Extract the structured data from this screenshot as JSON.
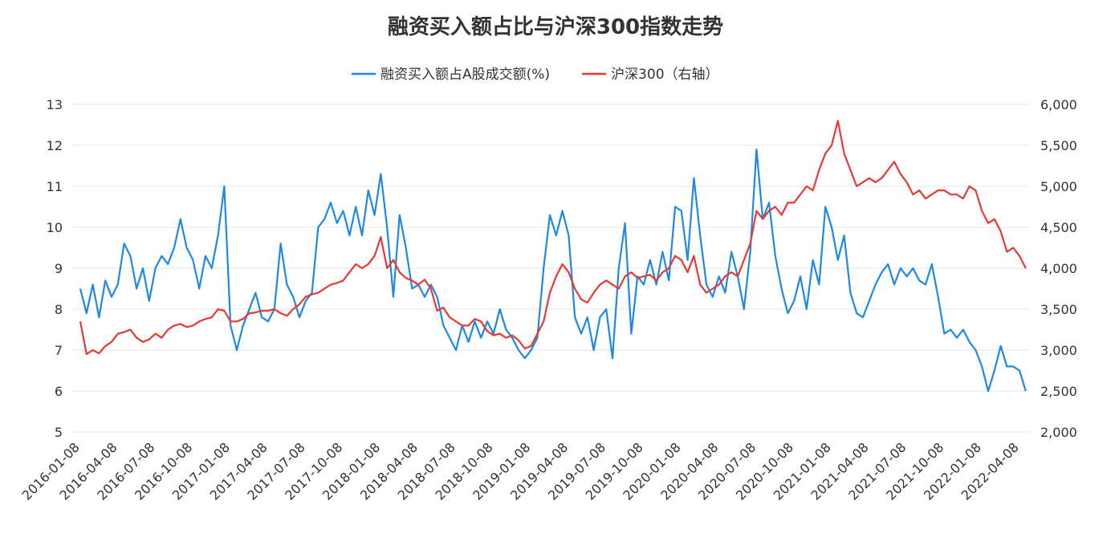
{
  "chart_data": {
    "type": "line",
    "title": "融资买入额占比与沪深300指数走势",
    "categories": [
      "2016-01-08",
      null,
      null,
      null,
      null,
      null,
      "2016-04-08",
      null,
      null,
      null,
      null,
      null,
      "2016-07-08",
      null,
      null,
      null,
      null,
      null,
      "2016-10-08",
      null,
      null,
      null,
      null,
      null,
      "2017-01-08",
      null,
      null,
      null,
      null,
      null,
      "2017-04-08",
      null,
      null,
      null,
      null,
      null,
      "2017-07-08",
      null,
      null,
      null,
      null,
      null,
      "2017-10-08",
      null,
      null,
      null,
      null,
      null,
      "2018-01-08",
      null,
      null,
      null,
      null,
      null,
      "2018-04-08",
      null,
      null,
      null,
      null,
      null,
      "2018-07-08",
      null,
      null,
      null,
      null,
      null,
      "2018-10-08",
      null,
      null,
      null,
      null,
      null,
      "2019-01-08",
      null,
      null,
      null,
      null,
      null,
      "2019-04-08",
      null,
      null,
      null,
      null,
      null,
      "2019-07-08",
      null,
      null,
      null,
      null,
      null,
      "2019-10-08",
      null,
      null,
      null,
      null,
      null,
      "2020-01-08",
      null,
      null,
      null,
      null,
      null,
      "2020-04-08",
      null,
      null,
      null,
      null,
      null,
      "2020-07-08",
      null,
      null,
      null,
      null,
      null,
      "2020-10-08",
      null,
      null,
      null,
      null,
      null,
      "2021-01-08",
      null,
      null,
      null,
      null,
      null,
      "2021-04-08",
      null,
      null,
      null,
      null,
      null,
      "2021-07-08",
      null,
      null,
      null,
      null,
      null,
      "2021-10-08",
      null,
      null,
      null,
      null,
      null,
      "2022-01-08",
      null,
      null,
      null,
      null,
      null,
      "2022-04-08",
      null
    ],
    "series": [
      {
        "name": "融资买入额占A股成交额(%)",
        "color": "#1e88e5",
        "axis": "y",
        "values": [
          8.5,
          7.9,
          8.6,
          7.8,
          8.7,
          8.3,
          8.6,
          9.6,
          9.3,
          8.5,
          9.0,
          8.2,
          9.0,
          9.3,
          9.1,
          9.5,
          10.2,
          9.5,
          9.2,
          8.5,
          9.3,
          9.0,
          9.8,
          11.0,
          7.6,
          7.0,
          7.6,
          8.0,
          8.4,
          7.8,
          7.7,
          8.0,
          9.6,
          8.6,
          8.3,
          7.8,
          8.2,
          8.4,
          10.0,
          10.2,
          10.6,
          10.1,
          10.4,
          9.8,
          10.5,
          9.8,
          10.9,
          10.3,
          11.3,
          10.0,
          8.3,
          10.3,
          9.5,
          8.5,
          8.6,
          8.3,
          8.6,
          8.3,
          7.6,
          7.3,
          7.0,
          7.6,
          7.2,
          7.7,
          7.3,
          7.7,
          7.4,
          8.0,
          7.5,
          7.3,
          7.0,
          6.8,
          7.0,
          7.3,
          9.0,
          10.3,
          9.8,
          10.4,
          9.8,
          7.8,
          7.4,
          7.8,
          7.0,
          7.8,
          8.0,
          6.8,
          9.0,
          10.1,
          7.4,
          8.8,
          8.6,
          9.2,
          8.6,
          9.4,
          8.7,
          10.5,
          10.4,
          9.2,
          11.2,
          9.8,
          8.6,
          8.3,
          8.8,
          8.4,
          9.4,
          8.8,
          8.0,
          9.4,
          11.9,
          10.2,
          10.6,
          9.3,
          8.5,
          7.9,
          8.2,
          8.8,
          8.0,
          9.2,
          8.6,
          10.5,
          10.0,
          9.2,
          9.8,
          8.4,
          7.9,
          7.8,
          8.2,
          8.6,
          8.9,
          9.1,
          8.6,
          9.0,
          8.8,
          9.0,
          8.7,
          8.6,
          9.1,
          8.3,
          7.4,
          7.5,
          7.3,
          7.5,
          7.2,
          7.0,
          6.6,
          6.0,
          6.5,
          7.1,
          6.6,
          6.6,
          6.5,
          6.0
        ]
      },
      {
        "name": "沪深300（右轴）",
        "color": "#e53935",
        "axis": "y2",
        "values": [
          3350,
          2950,
          3000,
          2960,
          3050,
          3100,
          3200,
          3220,
          3250,
          3150,
          3100,
          3130,
          3200,
          3150,
          3250,
          3300,
          3320,
          3280,
          3300,
          3350,
          3380,
          3400,
          3500,
          3480,
          3350,
          3350,
          3380,
          3450,
          3460,
          3480,
          3480,
          3500,
          3450,
          3420,
          3500,
          3560,
          3650,
          3680,
          3700,
          3750,
          3800,
          3820,
          3850,
          3950,
          4050,
          4000,
          4050,
          4150,
          4380,
          4000,
          4100,
          3950,
          3880,
          3850,
          3800,
          3860,
          3750,
          3480,
          3520,
          3400,
          3350,
          3300,
          3300,
          3380,
          3350,
          3230,
          3180,
          3200,
          3150,
          3180,
          3120,
          3020,
          3050,
          3200,
          3350,
          3700,
          3900,
          4050,
          3950,
          3750,
          3620,
          3580,
          3700,
          3800,
          3850,
          3800,
          3750,
          3900,
          3950,
          3880,
          3900,
          3920,
          3850,
          3950,
          4000,
          4150,
          4100,
          3950,
          4150,
          3800,
          3700,
          3750,
          3800,
          3900,
          3950,
          3900,
          4100,
          4300,
          4700,
          4600,
          4700,
          4750,
          4650,
          4800,
          4800,
          4900,
          5000,
          4950,
          5200,
          5400,
          5500,
          5800,
          5400,
          5200,
          5000,
          5050,
          5100,
          5050,
          5100,
          5200,
          5300,
          5150,
          5050,
          4900,
          4950,
          4850,
          4900,
          4950,
          4950,
          4900,
          4900,
          4850,
          5000,
          4950,
          4700,
          4550,
          4600,
          4450,
          4200,
          4250,
          4150,
          4000
        ]
      }
    ],
    "ylim": [
      5,
      13
    ],
    "yticks": [
      5,
      6,
      7,
      8,
      9,
      10,
      11,
      12,
      13
    ],
    "y2lim": [
      2000,
      6000
    ],
    "y2ticks": [
      {
        "value": 2000,
        "label": "2,000"
      },
      {
        "value": 2500,
        "label": "2,500"
      },
      {
        "value": 3000,
        "label": "3,000"
      },
      {
        "value": 3500,
        "label": "3,500"
      },
      {
        "value": 4000,
        "label": "4,000"
      },
      {
        "value": 4500,
        "label": "4,500"
      },
      {
        "value": 5000,
        "label": "5,000"
      },
      {
        "value": 5500,
        "label": "5,500"
      },
      {
        "value": 6000,
        "label": "6,000"
      }
    ],
    "grid": true,
    "legend": "top"
  }
}
